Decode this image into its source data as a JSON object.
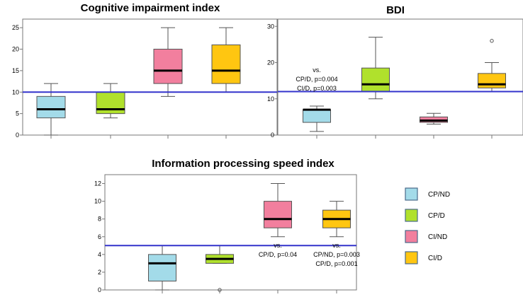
{
  "chart_data": [
    {
      "type": "boxplot",
      "title": "Cognitive impairment index",
      "categories": [
        "CP/ND",
        "CP/D",
        "CI/ND",
        "CI/D"
      ],
      "ylim": [
        0,
        27
      ],
      "yticks": [
        0,
        5,
        10,
        15,
        20,
        25
      ],
      "reference_line": 10,
      "boxes": [
        {
          "group": "CP/ND",
          "whisker_low": 0,
          "q1": 4,
          "median": 6,
          "q3": 9,
          "whisker_high": 12,
          "outliers": []
        },
        {
          "group": "CP/D",
          "whisker_low": 4,
          "q1": 5,
          "median": 6,
          "q3": 10,
          "whisker_high": 12,
          "outliers": []
        },
        {
          "group": "CI/ND",
          "whisker_low": 9,
          "q1": 12,
          "median": 15,
          "q3": 20,
          "whisker_high": 25,
          "outliers": []
        },
        {
          "group": "CI/D",
          "whisker_low": 10,
          "q1": 12,
          "median": 15,
          "q3": 21,
          "whisker_high": 25,
          "outliers": []
        }
      ],
      "annotations": []
    },
    {
      "type": "boxplot",
      "title": "BDI",
      "categories": [
        "CP/ND",
        "CP/D",
        "CI/ND",
        "CI/D"
      ],
      "ylim": [
        0,
        32
      ],
      "yticks": [
        0,
        10,
        20,
        30
      ],
      "reference_line": 12,
      "boxes": [
        {
          "group": "CP/ND",
          "whisker_low": 1,
          "q1": 3.5,
          "median": 7,
          "q3": 7,
          "whisker_high": 8,
          "outliers": []
        },
        {
          "group": "CP/D",
          "whisker_low": 10,
          "q1": 12,
          "median": 14,
          "q3": 18.5,
          "whisker_high": 27,
          "outliers": []
        },
        {
          "group": "CI/ND",
          "whisker_low": 3,
          "q1": 3.5,
          "median": 4,
          "q3": 5,
          "whisker_high": 6,
          "outliers": []
        },
        {
          "group": "CI/D",
          "whisker_low": 12,
          "q1": 13,
          "median": 14,
          "q3": 17,
          "whisker_high": 20,
          "outliers": [
            26
          ]
        }
      ],
      "annotations": [
        {
          "group": "CP/ND",
          "lines": [
            "vs.",
            "CP/D, p=0.004",
            "CI/D,  p=0.003"
          ]
        }
      ]
    },
    {
      "type": "boxplot",
      "title": "Information processing speed index",
      "categories": [
        "CP/ND",
        "CP/D",
        "CI/ND",
        "CI/D"
      ],
      "ylim": [
        0,
        13
      ],
      "yticks": [
        0,
        2,
        4,
        6,
        8,
        10,
        12
      ],
      "reference_line": 5,
      "boxes": [
        {
          "group": "CP/ND",
          "whisker_low": 0,
          "q1": 1,
          "median": 3,
          "q3": 4,
          "whisker_high": 5,
          "outliers": []
        },
        {
          "group": "CP/D",
          "whisker_low": 3,
          "q1": 3,
          "median": 3.5,
          "q3": 4,
          "whisker_high": 5,
          "outliers": [
            0
          ]
        },
        {
          "group": "CI/ND",
          "whisker_low": 6,
          "q1": 7,
          "median": 8,
          "q3": 10,
          "whisker_high": 12,
          "outliers": []
        },
        {
          "group": "CI/D",
          "whisker_low": 6,
          "q1": 7,
          "median": 8,
          "q3": 9,
          "whisker_high": 10,
          "outliers": []
        }
      ],
      "annotations": [
        {
          "group": "CI/ND",
          "lines": [
            "vs.",
            "CP/D, p=0.04"
          ]
        },
        {
          "group": "CI/D",
          "lines": [
            "vs.",
            "CP/ND, p=0.003",
            "CP/D, p=0.001"
          ]
        }
      ]
    }
  ],
  "legend": [
    {
      "label": "CP/ND",
      "color": "#a3dbe9"
    },
    {
      "label": "CP/D",
      "color": "#b0e12c"
    },
    {
      "label": "CI/ND",
      "color": "#f27f9e"
    },
    {
      "label": "CI/D",
      "color": "#ffc611"
    }
  ],
  "colors": {
    "reference_line": "#3333cc",
    "box_stroke": "#555555",
    "frame": "#777777"
  }
}
